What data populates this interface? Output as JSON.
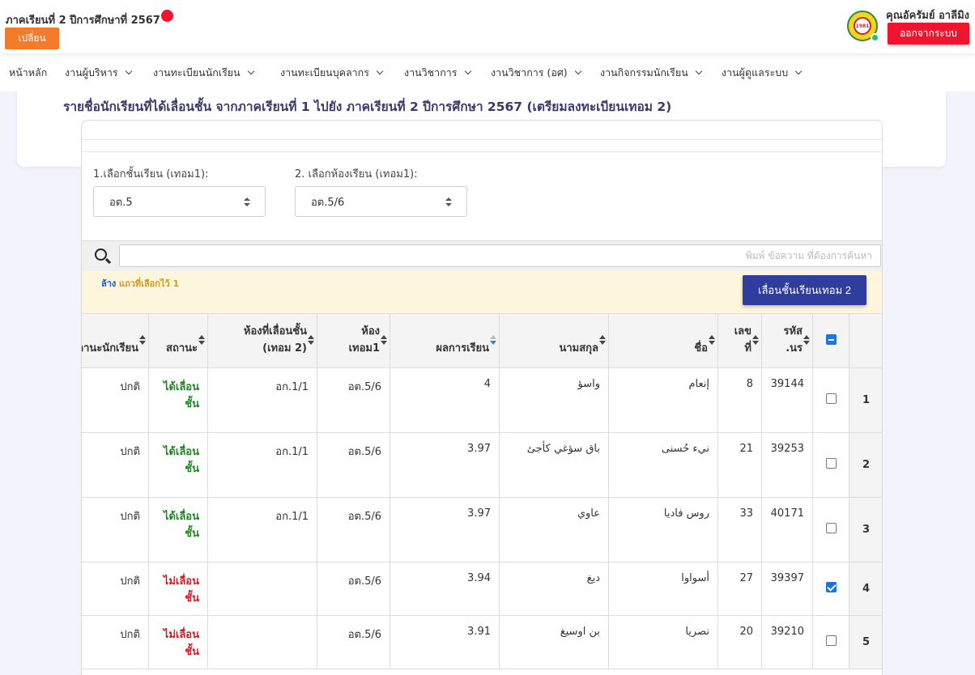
{
  "header": {
    "semester": "ภาคเรียนที่ 2 ปีการศึกษาที่ 2567",
    "change_label": "เปลี่ยน",
    "username": "คุณอัครัมย์ อาลีมิง",
    "logout_label": "ออกจากระบบ",
    "logo_text": "1981",
    "colors": {
      "change": "#f47b2a",
      "logout": "#f0142f",
      "online": "#22c55e"
    }
  },
  "nav": {
    "items": [
      {
        "label": "หน้าหลัก"
      },
      {
        "label": "งานผู้บริหาร"
      },
      {
        "label": "งานทะเบียนนักเรียน"
      },
      {
        "label": "งานทะเบียนบุคลากร"
      },
      {
        "label": "งานวิชาการ"
      },
      {
        "label": "งานวิชาการ (อศ)"
      },
      {
        "label": "งานกิจกรรมนักเรียน"
      },
      {
        "label": "งานผู้ดูแลระบบ"
      }
    ]
  },
  "page": {
    "title": "รายชื่อนักเรียนที่ได้เลื่อนชั้น จากภาคเรียนที่ 1 ไปยัง ภาคเรียนที่ 2 ปีการศึกษา 2567 (เตรียมลงทะเบียนเทอม 2)"
  },
  "filters": {
    "grade_label": "1.เลือกชั้นเรียน (เทอม1):",
    "grade_value": "อต.5",
    "room_label": "2. เลือกห้องเรียน (เทอม1):",
    "room_value": "อต.5/6"
  },
  "search": {
    "placeholder": "พิมพ์ ข้อความ ที่ต้องการค้นหา",
    "value": ""
  },
  "selection": {
    "clear_label": "ล้าง",
    "selected_text": "แถวที่เลือกไว้ 1",
    "promote_label": "เลื่อนชั้นเรียนเทอม 2",
    "promote_color": "#2f3e9e"
  },
  "table": {
    "headers": {
      "student_id": "รหัส\n.นร",
      "number": "เลข\nที่",
      "first_name": "ชื่อ",
      "last_name": "นามสกุล",
      "grade": "ผลการเรียน",
      "room_t1": "ห้อง\nเทอม1",
      "room_t2": "ห้องที่เลื่อนชั้น\n(เทอม 2)",
      "status": "สถานะ",
      "student_status": "สถานะนักเรียน"
    },
    "rows": [
      {
        "idx": "1",
        "checked": false,
        "student_id": "39144",
        "number": "8",
        "first_name": "إنعام",
        "last_name": "واسؤ",
        "grade": "4",
        "room_t1": "อต.5/6",
        "room_t2": "อก.1/1",
        "status": "ได้เลื่อน\nชั้น",
        "promoted": true,
        "student_status": "ปกติ"
      },
      {
        "idx": "2",
        "checked": false,
        "student_id": "39253",
        "number": "21",
        "first_name": "نيء حُسنى",
        "last_name": "باق سؤغي كأجئ",
        "grade": "3.97",
        "room_t1": "อต.5/6",
        "room_t2": "อก.1/1",
        "status": "ได้เลื่อน\nชั้น",
        "promoted": true,
        "student_status": "ปกติ"
      },
      {
        "idx": "3",
        "checked": false,
        "student_id": "40171",
        "number": "33",
        "first_name": "روس فاديا",
        "last_name": "عاوي",
        "grade": "3.97",
        "room_t1": "อต.5/6",
        "room_t2": "อก.1/1",
        "status": "ได้เลื่อน\nชั้น",
        "promoted": true,
        "student_status": "ปกติ"
      },
      {
        "idx": "4",
        "checked": true,
        "student_id": "39397",
        "number": "27",
        "first_name": "أسواوا",
        "last_name": "ديغ",
        "grade": "3.94",
        "room_t1": "อต.5/6",
        "room_t2": "",
        "status": "ไม่เลื่อน\nชั้น",
        "promoted": false,
        "student_status": "ปกติ"
      },
      {
        "idx": "5",
        "checked": false,
        "student_id": "39210",
        "number": "20",
        "first_name": "نصريا",
        "last_name": "بن اوسيغ",
        "grade": "3.91",
        "room_t1": "อต.5/6",
        "room_t2": "",
        "status": "ไม่เลื่อน\nชั้น",
        "promoted": false,
        "student_status": "ปกติ"
      }
    ]
  }
}
